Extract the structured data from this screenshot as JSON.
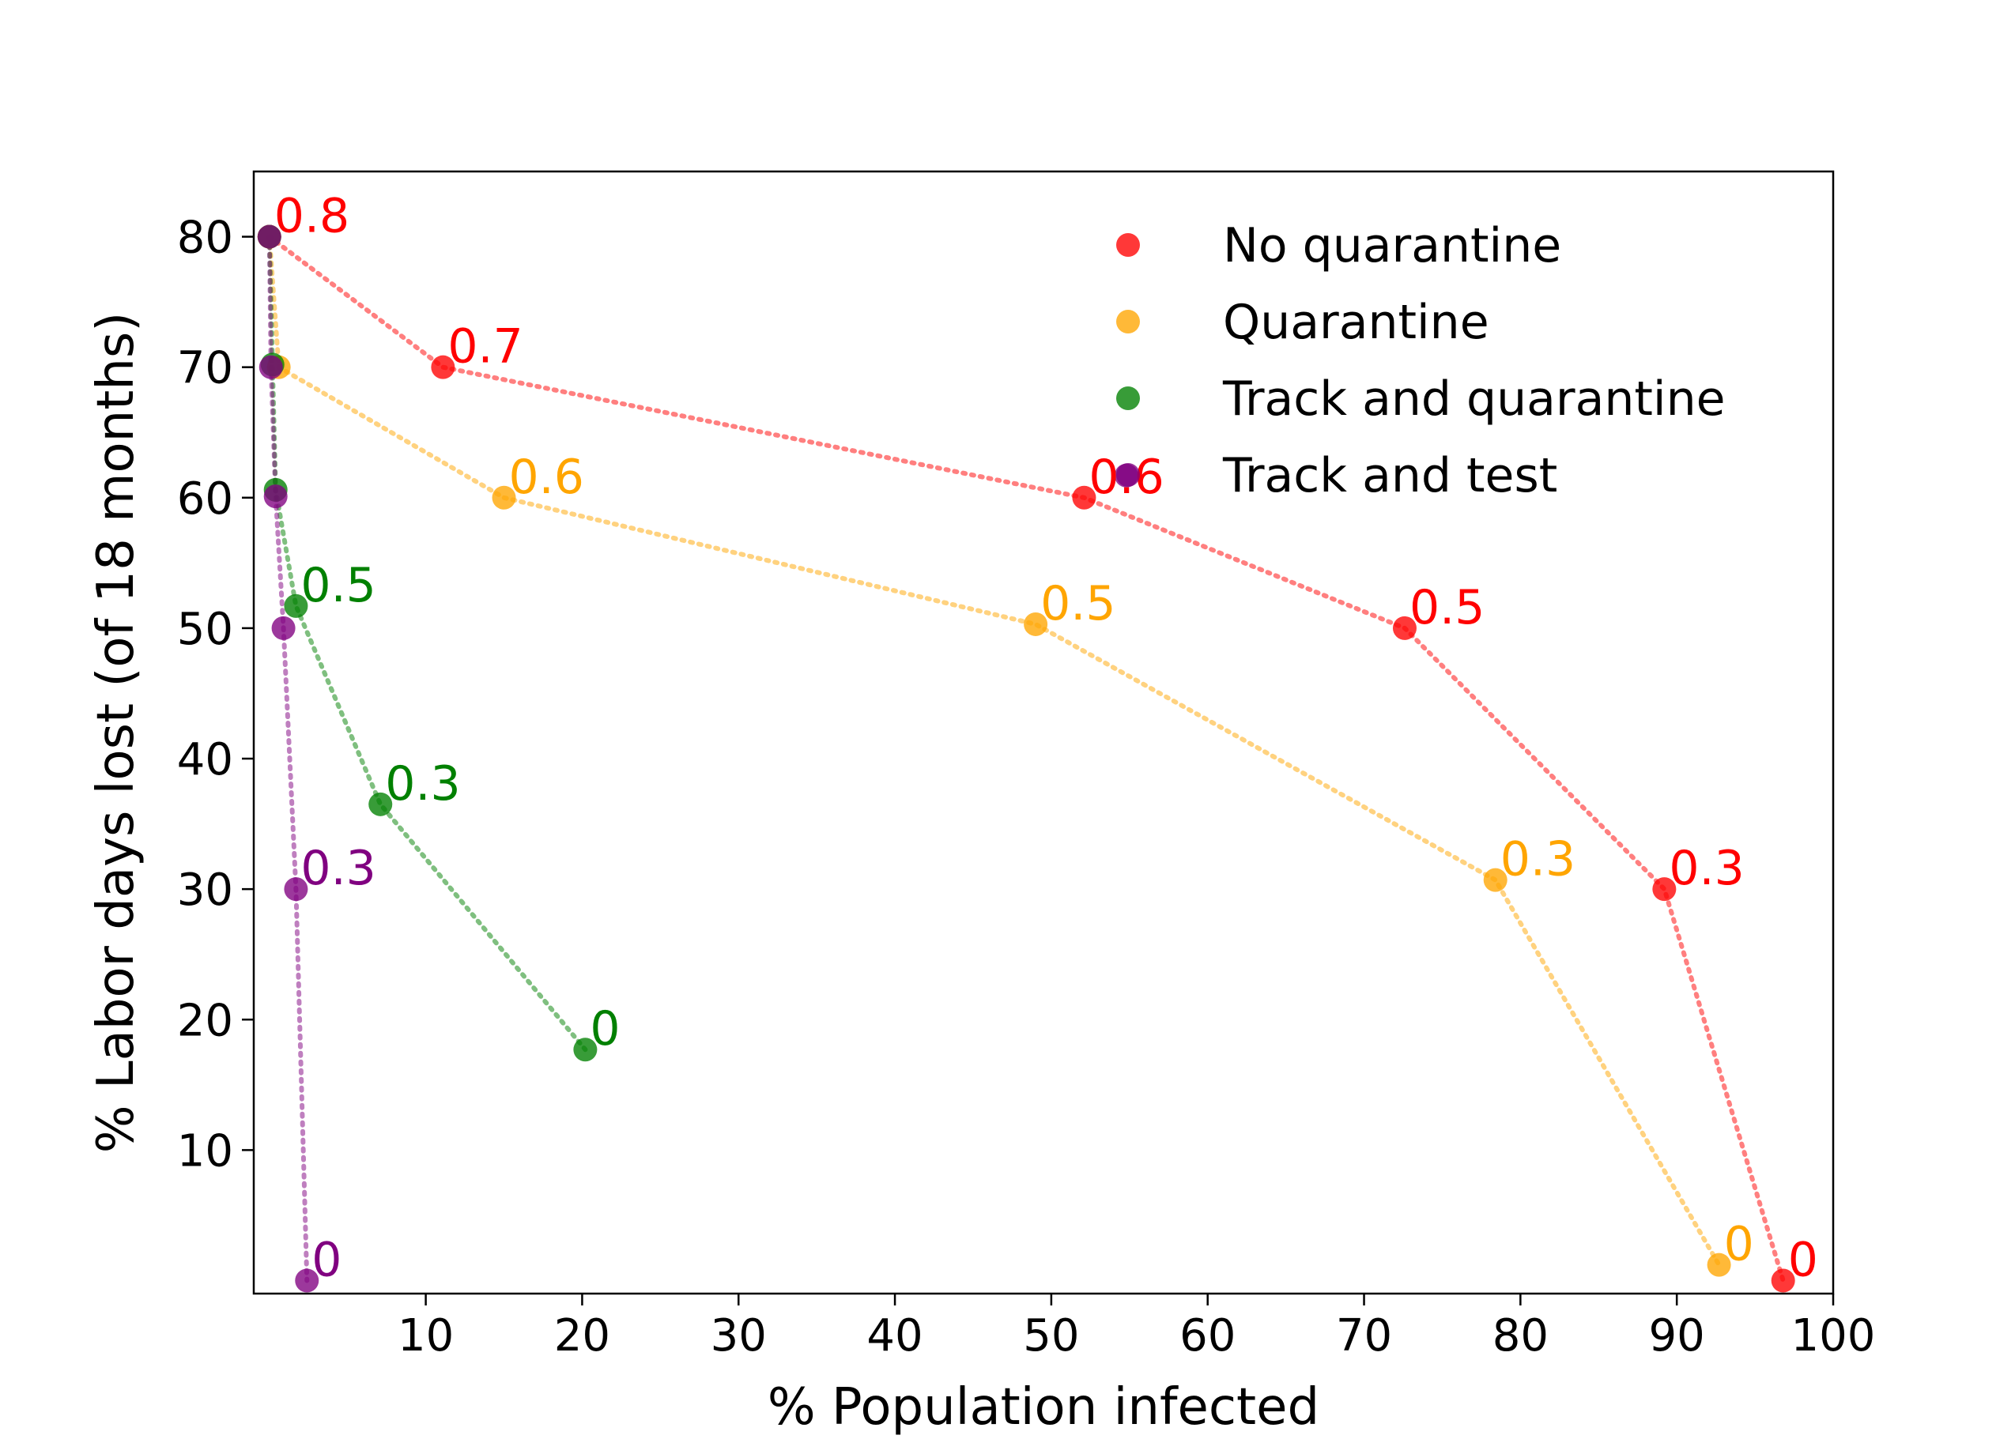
{
  "chart_data": {
    "type": "scatter",
    "xlabel": "% Population infected",
    "ylabel": "% Labor days lost (of 18 months)",
    "xlim": [
      -1,
      100
    ],
    "ylim": [
      -1,
      85
    ],
    "xticks": [
      10,
      20,
      30,
      40,
      50,
      60,
      70,
      80,
      90,
      100
    ],
    "yticks": [
      10,
      20,
      30,
      40,
      50,
      60,
      70,
      80
    ],
    "grid": false,
    "legend_position": "top-right",
    "series": [
      {
        "name": "No quarantine",
        "color": "#ff0000",
        "points": [
          {
            "x": 0.0,
            "y": 80.0,
            "label": "0.8"
          },
          {
            "x": 11.1,
            "y": 70.0,
            "label": "0.7"
          },
          {
            "x": 52.1,
            "y": 60.0,
            "label": "0.6"
          },
          {
            "x": 72.6,
            "y": 50.0,
            "label": "0.5"
          },
          {
            "x": 89.2,
            "y": 30.0,
            "label": "0.3"
          },
          {
            "x": 96.8,
            "y": 0.0,
            "label": "0"
          }
        ]
      },
      {
        "name": "Quarantine",
        "color": "#ffa500",
        "points": [
          {
            "x": 0.0,
            "y": 80.0,
            "label": ""
          },
          {
            "x": 0.6,
            "y": 70.0,
            "label": ""
          },
          {
            "x": 15.0,
            "y": 60.0,
            "label": "0.6"
          },
          {
            "x": 49.0,
            "y": 50.3,
            "label": "0.5"
          },
          {
            "x": 78.4,
            "y": 30.7,
            "label": "0.3"
          },
          {
            "x": 92.7,
            "y": 1.2,
            "label": "0"
          }
        ]
      },
      {
        "name": "Track and quarantine",
        "color": "#008000",
        "points": [
          {
            "x": 0.0,
            "y": 80.0,
            "label": ""
          },
          {
            "x": 0.2,
            "y": 70.2,
            "label": ""
          },
          {
            "x": 0.4,
            "y": 60.6,
            "label": ""
          },
          {
            "x": 1.7,
            "y": 51.7,
            "label": "0.5"
          },
          {
            "x": 7.1,
            "y": 36.5,
            "label": "0.3"
          },
          {
            "x": 20.2,
            "y": 17.7,
            "label": "0"
          }
        ]
      },
      {
        "name": "Track and test",
        "color": "#800080",
        "points": [
          {
            "x": 0.0,
            "y": 80.0,
            "label": ""
          },
          {
            "x": 0.1,
            "y": 70.0,
            "label": ""
          },
          {
            "x": 0.4,
            "y": 60.1,
            "label": ""
          },
          {
            "x": 0.9,
            "y": 50.0,
            "label": ""
          },
          {
            "x": 1.7,
            "y": 30.0,
            "label": "0.3"
          },
          {
            "x": 2.4,
            "y": 0.0,
            "label": "0"
          }
        ]
      }
    ],
    "stray_points": [
      {
        "x": 54.8,
        "y": 61.7,
        "color": "#800080"
      }
    ]
  }
}
